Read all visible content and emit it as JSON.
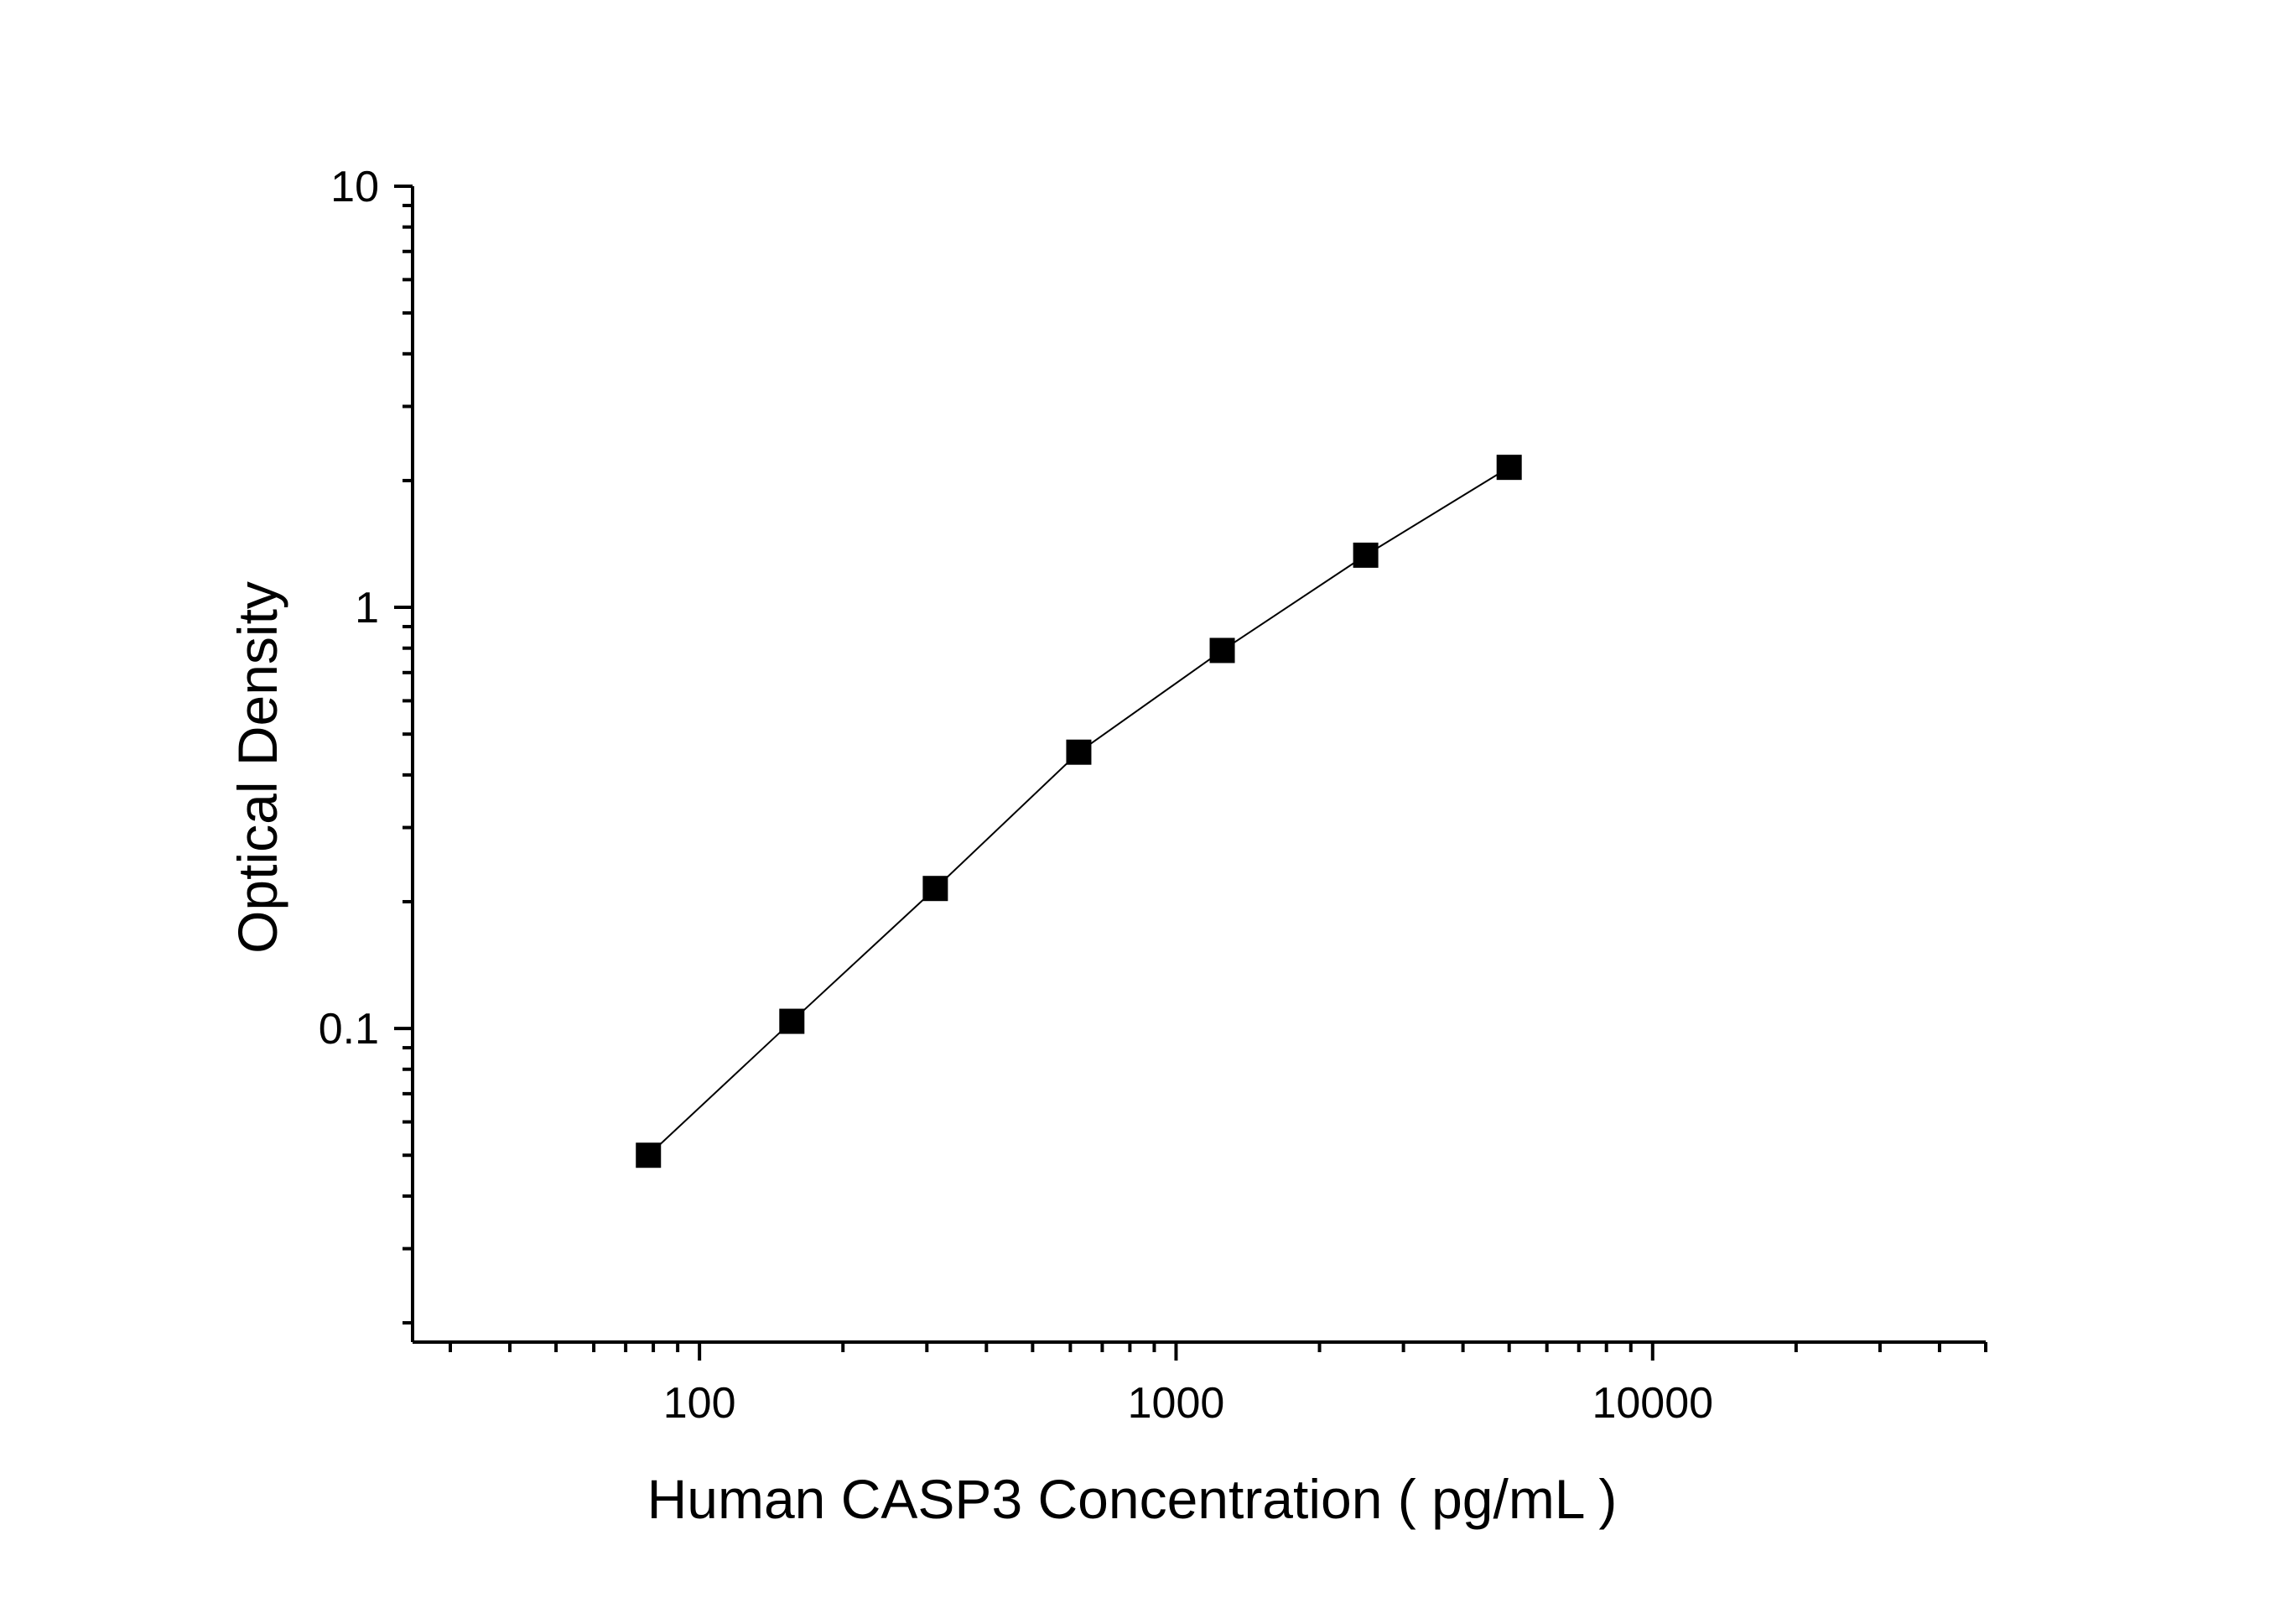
{
  "chart_data": {
    "type": "line",
    "title": "",
    "xlabel": "Human CASP3  Concentration ( pg/mL )",
    "ylabel": "Optical Density",
    "x_scale": "log",
    "y_scale": "log",
    "xlim": [
      25,
      50000
    ],
    "ylim": [
      0.018,
      10
    ],
    "x_ticks": [
      100,
      1000,
      10000
    ],
    "x_tick_labels": [
      "100",
      "1000",
      "10000"
    ],
    "y_ticks": [
      0.1,
      1,
      10
    ],
    "y_tick_labels": [
      "0.1",
      "1",
      "10"
    ],
    "grid": false,
    "legend": "none",
    "marker": "square",
    "series": [
      {
        "x": [
          78.13,
          156.25,
          312.5,
          625,
          1250,
          2500,
          5000
        ],
        "y": [
          0.05,
          0.104,
          0.215,
          0.453,
          0.79,
          1.33,
          2.15
        ]
      }
    ],
    "colors": {
      "line": "#000000",
      "marker": "#000000",
      "axis": "#000000"
    }
  }
}
